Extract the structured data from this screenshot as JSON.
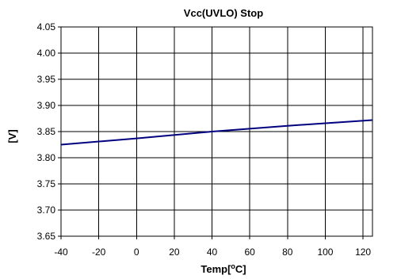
{
  "chart_data": {
    "type": "line",
    "title": "Vcc(UVLO) Stop",
    "xlabel": "Temp[°C]",
    "xlabel_parts": {
      "main": "Temp[",
      "sup": "o",
      "rest": "C]"
    },
    "ylabel": "[V]",
    "xlim": [
      -40,
      125
    ],
    "ylim": [
      3.65,
      4.05
    ],
    "x_ticks": [
      -40,
      -20,
      0,
      20,
      40,
      60,
      80,
      100,
      120
    ],
    "x_tick_labels": [
      "-40",
      "-20",
      "0",
      "20",
      "40",
      "60",
      "80",
      "100",
      "120"
    ],
    "y_ticks": [
      3.65,
      3.7,
      3.75,
      3.8,
      3.85,
      3.9,
      3.95,
      4.0,
      4.05
    ],
    "y_tick_labels": [
      "3.65",
      "3.70",
      "3.75",
      "3.80",
      "3.85",
      "3.90",
      "3.95",
      "4.00",
      "4.05"
    ],
    "grid": true,
    "legend": "none",
    "series": [
      {
        "color": "#000080",
        "x": [
          -40,
          0,
          40,
          80,
          125
        ],
        "y": [
          3.825,
          3.837,
          3.85,
          3.861,
          3.872
        ]
      }
    ]
  }
}
